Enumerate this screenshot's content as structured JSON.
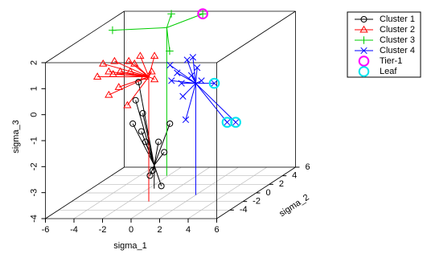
{
  "chart_data": {
    "type": "scatter3d",
    "xlabel": "sigma_1",
    "ylabel": "sigma_2",
    "zlabel": "sigma_3",
    "xlim": [
      -6,
      6
    ],
    "ylim": [
      -6,
      6
    ],
    "zlim": [
      -4,
      2
    ],
    "xticks": [
      -6,
      -4,
      -2,
      0,
      2,
      4,
      6
    ],
    "yticks": [
      -4,
      -2,
      0,
      2,
      4,
      6
    ],
    "zticks": [
      -4,
      -3,
      -2,
      -1,
      0,
      1,
      2
    ],
    "grid": true,
    "legend": "right",
    "series": [
      {
        "name": "Cluster 1",
        "color": "#000000",
        "marker": "circle",
        "x": [
          -2.7,
          -2.9,
          -2.4,
          -3.1,
          -2.5,
          -2.2,
          -0.9,
          -0.5,
          -1.3,
          -1.7,
          -1.1,
          -1.9
        ],
        "y": [
          1,
          1,
          1,
          1,
          1,
          1,
          1,
          1,
          1,
          1,
          1,
          1
        ],
        "z": [
          0.1,
          -0.6,
          -1.1,
          -1.5,
          -1.8,
          -2.2,
          -2.6,
          -1.5,
          -2.2,
          -3.3,
          -3.9,
          -3.5
        ],
        "hub": {
          "x": -1.6,
          "y": 1,
          "z": -3.1
        }
      },
      {
        "name": "Cluster 2",
        "color": "#ff0000",
        "marker": "triangle",
        "x": [
          -4.2,
          -3.8,
          -3.4,
          -3.1,
          -3.0,
          -2.6,
          -2.0,
          -1.9,
          -1.6,
          -1.2,
          -0.9,
          -0.4,
          -0.2,
          -0.2,
          -3.4,
          -2.1,
          -2.7
        ],
        "y": [
          -2,
          -2,
          -2,
          -2,
          -2,
          -2,
          -2,
          -2,
          -2,
          -2,
          -2,
          -2,
          -2,
          -2,
          -2,
          -2,
          -2
        ],
        "z": [
          0.8,
          1.3,
          1.0,
          0.9,
          1.4,
          1.0,
          1.4,
          1.0,
          1.3,
          1.6,
          0.8,
          1.0,
          0.7,
          1.6,
          0.1,
          -0.3,
          0.4
        ],
        "hub": {
          "x": -0.6,
          "y": -2,
          "z": 0.8
        }
      },
      {
        "name": "Cluster 3",
        "color": "#00cc00",
        "marker": "plus",
        "x": [
          -5.9,
          -2.7,
          -0.5,
          -1.9
        ],
        "y": [
          4,
          6,
          6,
          4
        ],
        "z": [
          1.6,
          1.9,
          1.9,
          0.8
        ],
        "hub": {
          "x": -2.1,
          "y": 4,
          "z": 1.7
        }
      },
      {
        "name": "Cluster 4",
        "color": "#0000ff",
        "marker": "cross",
        "x": [
          0.2,
          0.3,
          0.7,
          1.0,
          1.1,
          1.4,
          1.8,
          2.1,
          1.7,
          2.4,
          1.3,
          3.3,
          4.2,
          4.8
        ],
        "y": [
          -0.5,
          -0.5,
          -0.5,
          -0.5,
          -0.5,
          -0.5,
          -0.5,
          -0.5,
          -0.5,
          -0.5,
          -0.5,
          -0.5,
          -0.5,
          -0.5
        ],
        "z": [
          1.0,
          0.4,
          0.7,
          0.3,
          -0.2,
          1.2,
          1.3,
          0.9,
          0.6,
          0.4,
          -1.1,
          0.3,
          -1.2,
          -1.2
        ],
        "hub": {
          "x": 2.0,
          "y": -0.5,
          "z": 0.3
        }
      },
      {
        "name": "Tier-1",
        "color": "#ff00ff",
        "marker": "ring",
        "x": [
          -0.5
        ],
        "y": [
          6
        ],
        "z": [
          1.9
        ]
      },
      {
        "name": "Leaf",
        "color": "#00e5ee",
        "marker": "ring",
        "x": [
          3.3,
          4.2,
          4.8
        ],
        "y": [
          -0.5,
          -0.5,
          -0.5
        ],
        "z": [
          0.3,
          -1.2,
          -1.2
        ]
      }
    ]
  }
}
